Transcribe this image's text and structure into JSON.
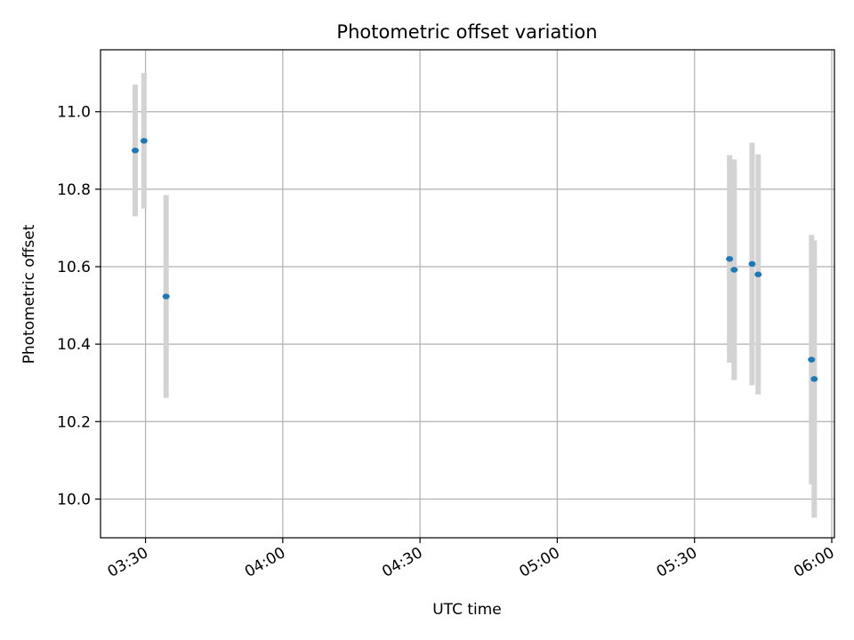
{
  "chart_data": {
    "type": "scatter",
    "title": "Photometric offset variation",
    "xlabel": "UTC time",
    "ylabel": "Photometric offset",
    "x_ticks": [
      "03:30",
      "04:00",
      "04:30",
      "05:00",
      "05:30",
      "06:00"
    ],
    "y_ticks": [
      "10.0",
      "10.2",
      "10.4",
      "10.6",
      "10.8",
      "11.0"
    ],
    "xlim": [
      "03:20:10",
      "06:00:35"
    ],
    "ylim": [
      9.9,
      11.16
    ],
    "grid": true,
    "point_color": "#1f77b4",
    "errorbar_color": "#d3d3d3",
    "points": [
      {
        "x": "03:27:45",
        "y": 10.9,
        "err": 0.17
      },
      {
        "x": "03:29:40",
        "y": 10.925,
        "err": 0.175
      },
      {
        "x": "03:34:30",
        "y": 10.523,
        "err": 0.262
      },
      {
        "x": "05:37:40",
        "y": 10.62,
        "err": 0.268
      },
      {
        "x": "05:38:40",
        "y": 10.592,
        "err": 0.285
      },
      {
        "x": "05:42:35",
        "y": 10.607,
        "err": 0.313
      },
      {
        "x": "05:43:55",
        "y": 10.58,
        "err": 0.31
      },
      {
        "x": "05:55:35",
        "y": 10.36,
        "err": 0.322
      },
      {
        "x": "05:56:10",
        "y": 10.31,
        "err": 0.358
      }
    ]
  }
}
